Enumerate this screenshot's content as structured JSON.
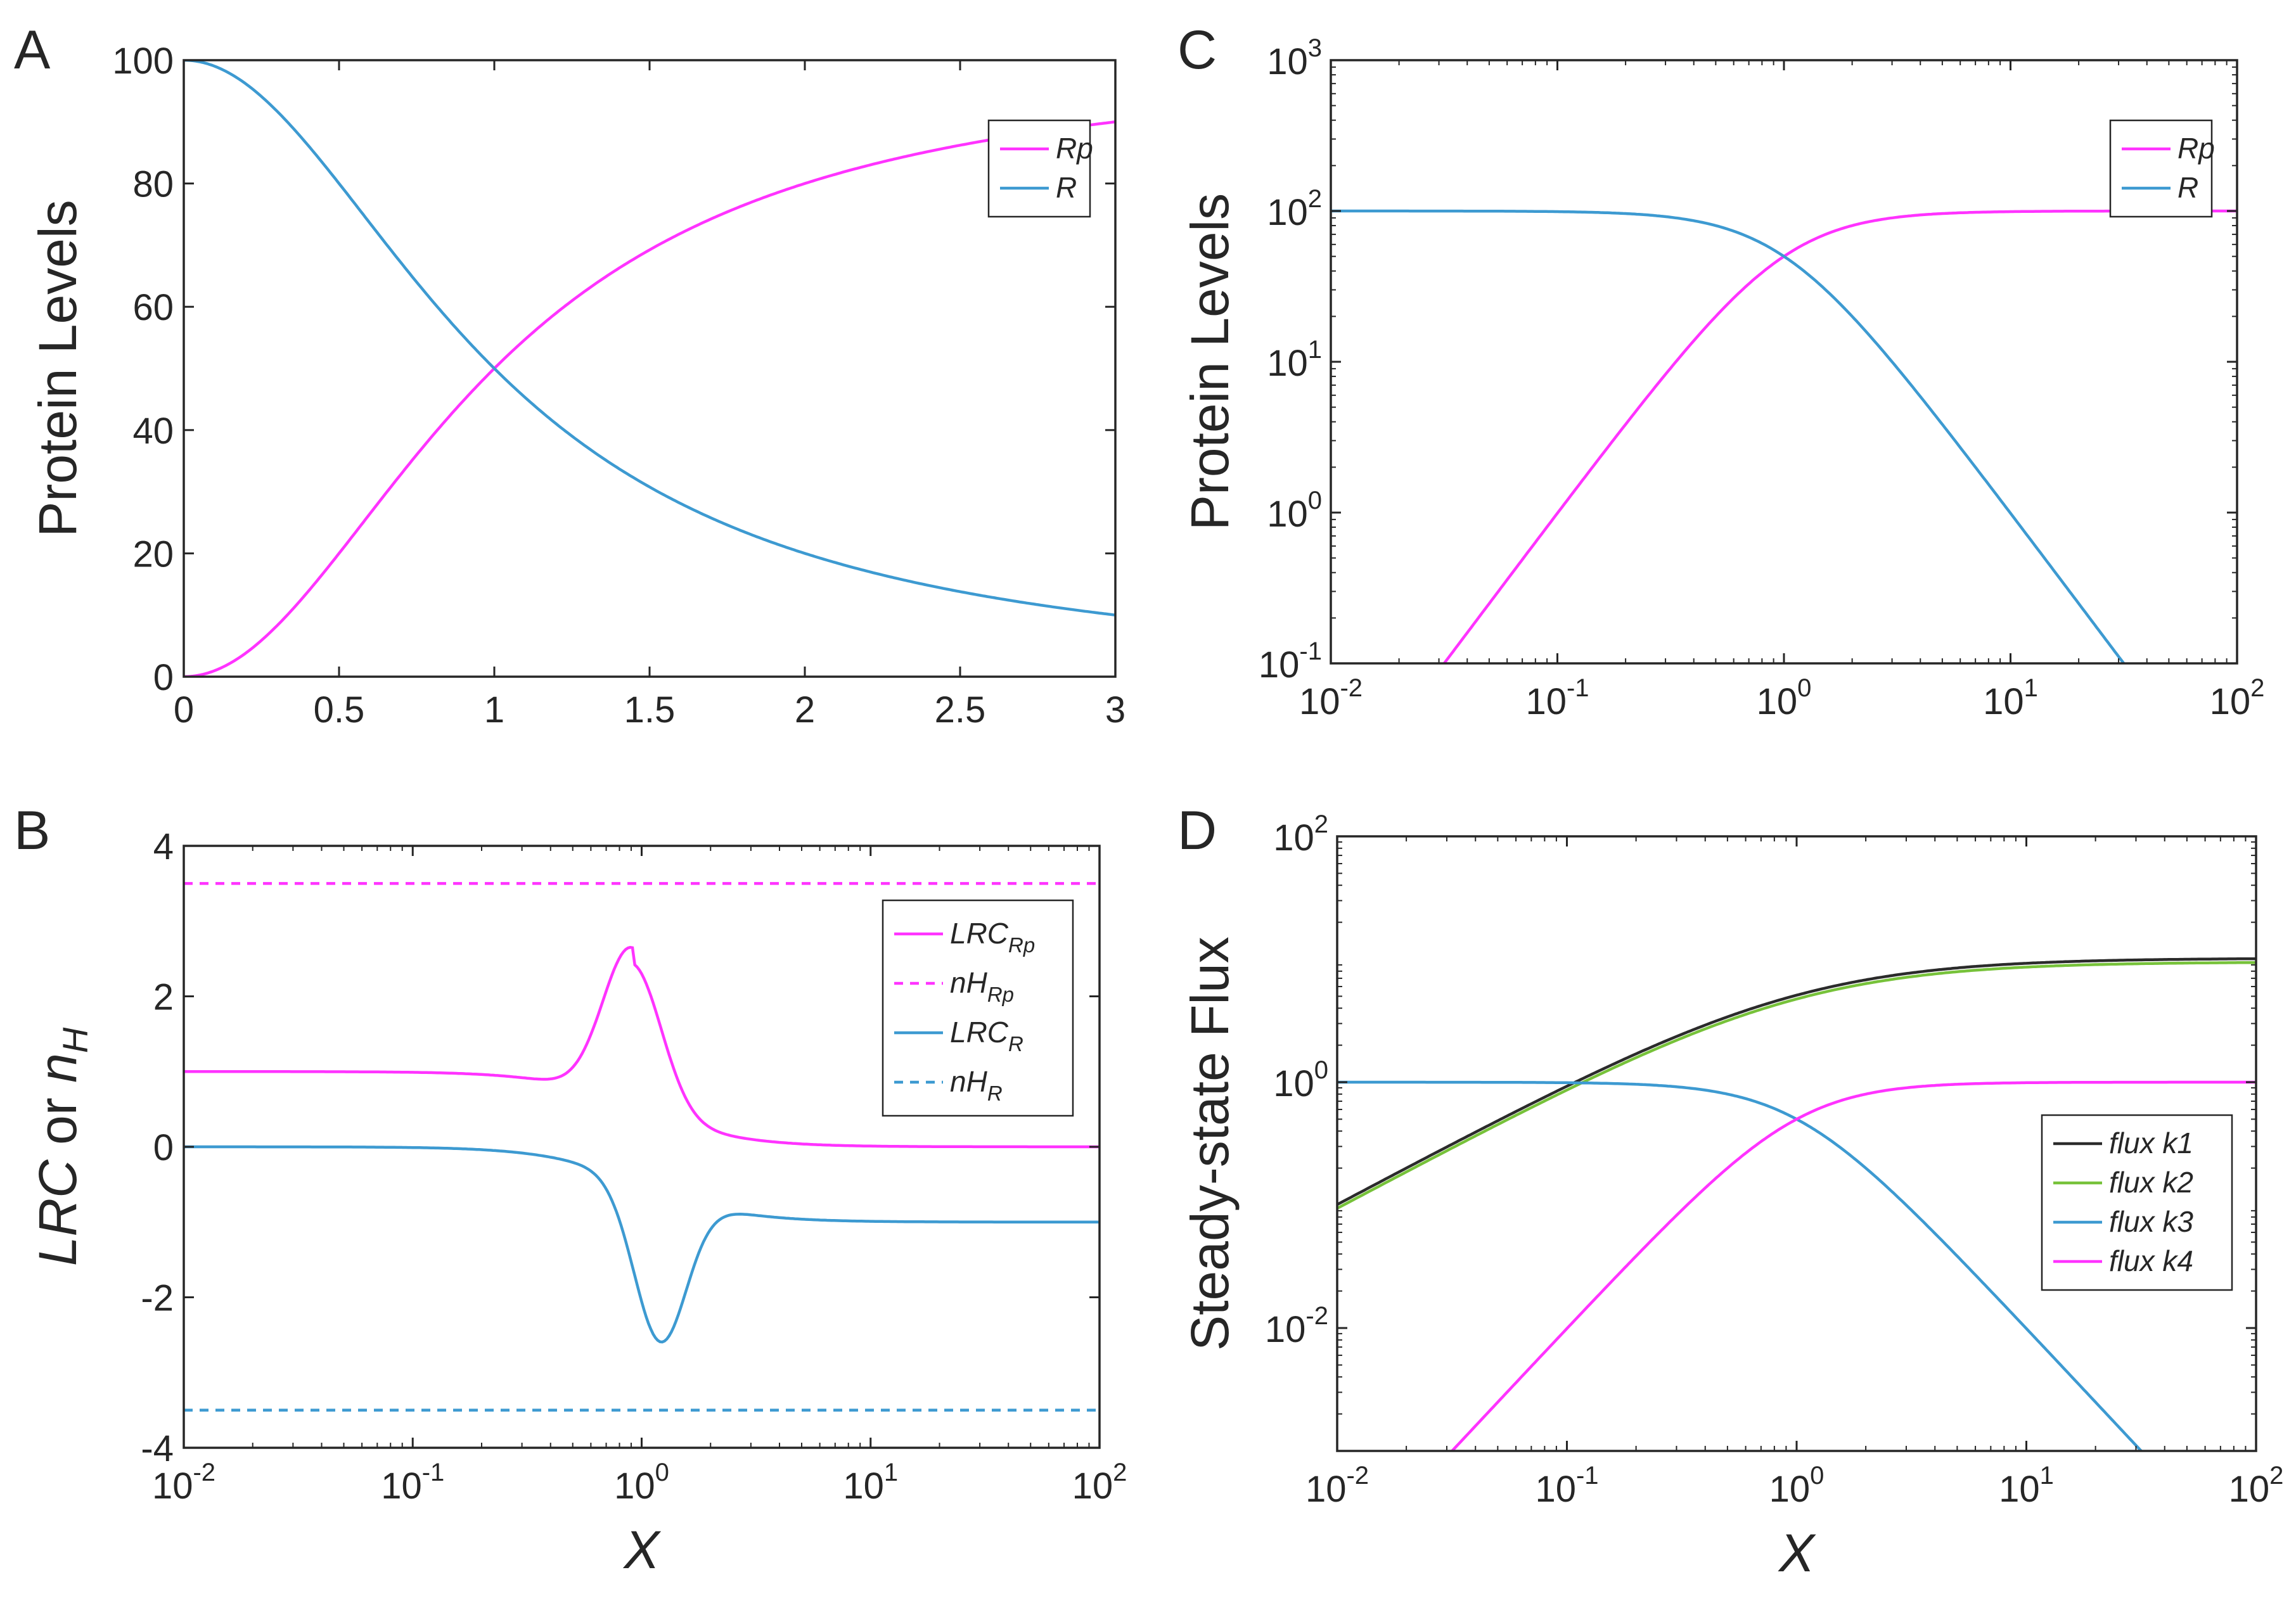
{
  "figure": {
    "panels": [
      "A",
      "B",
      "C",
      "D"
    ]
  },
  "chart_data": [
    {
      "panel": "A",
      "type": "line",
      "xscale": "linear",
      "yscale": "linear",
      "xlim": [
        0,
        3
      ],
      "ylim": [
        0,
        100
      ],
      "xticks": [
        0,
        0.5,
        1,
        1.5,
        2,
        2.5,
        3
      ],
      "xtick_labels": [
        "0",
        "0.5",
        "1",
        "1.5",
        "2",
        "2.5",
        "3"
      ],
      "yticks": [
        0,
        20,
        40,
        60,
        80,
        100
      ],
      "ytick_labels": [
        "0",
        "20",
        "40",
        "60",
        "80",
        "100"
      ],
      "xlabel": "",
      "ylabel": "Protein Levels",
      "legend": {
        "position": "top-right",
        "entries": [
          "Rp",
          "R"
        ]
      },
      "series": [
        {
          "name": "Rp",
          "color": "#ff33ff",
          "style": "solid",
          "model": "rp_frac",
          "scale": 100
        },
        {
          "name": "R",
          "color": "#3d9ad1",
          "style": "solid",
          "model": "r_frac",
          "scale": 100
        }
      ]
    },
    {
      "panel": "B",
      "type": "line",
      "xscale": "log",
      "yscale": "linear",
      "xlim": [
        0.01,
        100
      ],
      "ylim": [
        -4,
        4
      ],
      "xticks": [
        0.01,
        0.1,
        1,
        10,
        100
      ],
      "xtick_labels": [
        [
          "10",
          "-2"
        ],
        [
          "10",
          "-1"
        ],
        [
          "10",
          "0"
        ],
        [
          "10",
          "1"
        ],
        [
          "10",
          "2"
        ]
      ],
      "yticks": [
        -4,
        -2,
        0,
        2,
        4
      ],
      "ytick_labels": [
        "-4",
        "-2",
        "0",
        "2",
        "4"
      ],
      "xlabel": "X",
      "ylabel": {
        "parts": [
          "LRC",
          " or ",
          "n",
          "H"
        ]
      },
      "legend": {
        "position": "top-right",
        "entries": [
          [
            "LRC",
            "Rp"
          ],
          [
            "nH",
            "Rp"
          ],
          [
            "LRC",
            "R"
          ],
          [
            "nH",
            "R"
          ]
        ]
      },
      "series": [
        {
          "name": "LRC_Rp",
          "color": "#ff33ff",
          "style": "solid",
          "model": "lrc_rp"
        },
        {
          "name": "nH_Rp",
          "color": "#ff33ff",
          "style": "dashed",
          "constant": 3.5
        },
        {
          "name": "LRC_R",
          "color": "#3d9ad1",
          "style": "solid",
          "model": "lrc_r"
        },
        {
          "name": "nH_R",
          "color": "#3d9ad1",
          "style": "dashed",
          "constant": -3.5
        }
      ]
    },
    {
      "panel": "C",
      "type": "line",
      "xscale": "log",
      "yscale": "log",
      "xlim": [
        0.01,
        100
      ],
      "ylim": [
        0.1,
        1000
      ],
      "xticks": [
        0.01,
        0.1,
        1,
        10,
        100
      ],
      "xtick_labels": [
        [
          "10",
          "-2"
        ],
        [
          "10",
          "-1"
        ],
        [
          "10",
          "0"
        ],
        [
          "10",
          "1"
        ],
        [
          "10",
          "2"
        ]
      ],
      "yticks": [
        0.1,
        1,
        10,
        100,
        1000
      ],
      "ytick_labels": [
        [
          "10",
          "-1"
        ],
        [
          "10",
          "0"
        ],
        [
          "10",
          "1"
        ],
        [
          "10",
          "2"
        ],
        [
          "10",
          "3"
        ]
      ],
      "xlabel": "",
      "ylabel": "Protein Levels",
      "legend": {
        "position": "top-right",
        "entries": [
          "Rp",
          "R"
        ]
      },
      "series": [
        {
          "name": "Rp",
          "color": "#ff33ff",
          "style": "solid",
          "model": "rp_frac",
          "scale": 100
        },
        {
          "name": "R",
          "color": "#3d9ad1",
          "style": "solid",
          "model": "r_frac",
          "scale": 100
        }
      ]
    },
    {
      "panel": "D",
      "type": "line",
      "xscale": "log",
      "yscale": "log",
      "xlim": [
        0.01,
        100
      ],
      "ylim": [
        0.001,
        100
      ],
      "xticks": [
        0.01,
        0.1,
        1,
        10,
        100
      ],
      "xtick_labels": [
        [
          "10",
          "-2"
        ],
        [
          "10",
          "-1"
        ],
        [
          "10",
          "0"
        ],
        [
          "10",
          "1"
        ],
        [
          "10",
          "2"
        ]
      ],
      "yticks": [
        0.01,
        1,
        100
      ],
      "ytick_labels": [
        [
          "10",
          "-2"
        ],
        [
          "10",
          "0"
        ],
        [
          "10",
          "2"
        ]
      ],
      "xlabel": "X",
      "ylabel": "Steady-state Flux",
      "legend": {
        "position": "right",
        "entries": [
          "flux k1",
          "flux k2",
          "flux k3",
          "flux k4"
        ]
      },
      "series": [
        {
          "name": "flux k1",
          "color": "#2b2b2b",
          "style": "solid",
          "model": "flux_k1",
          "scale": 10.2
        },
        {
          "name": "flux k2",
          "color": "#77c23a",
          "style": "solid",
          "model": "flux_k2",
          "scale": 9.5
        },
        {
          "name": "flux k3",
          "color": "#3d9ad1",
          "style": "solid",
          "model": "r_frac",
          "scale": 1
        },
        {
          "name": "flux k4",
          "color": "#ff33ff",
          "style": "solid",
          "model": "rp_frac",
          "scale": 1
        }
      ]
    }
  ]
}
